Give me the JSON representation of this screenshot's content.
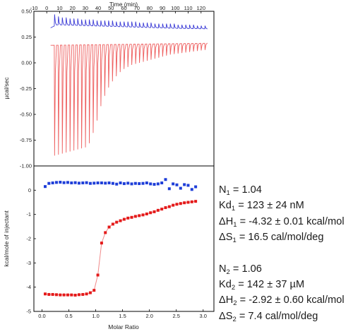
{
  "chart_data": [
    {
      "type": "line",
      "xlabel": "Time (min)",
      "ylabel": "µcal/sec",
      "xlim": [
        -10,
        130
      ],
      "ylim": [
        -1.0,
        0.5
      ],
      "xticks": [
        "-10",
        "0",
        "10",
        "20",
        "30",
        "40",
        "50",
        "60",
        "70",
        "80",
        "90",
        "100",
        "110",
        "120"
      ],
      "yticks": [
        "-1.00",
        "-0.75",
        "-0.50",
        "-0.25",
        "0.00",
        "0.25",
        "0.50"
      ],
      "injection_interval_min": 3,
      "series": [
        {
          "color": "#3b3bd6",
          "baseline": [
            [
              3,
              0.34
            ],
            [
              8,
              0.37
            ],
            [
              20,
              0.365
            ],
            [
              60,
              0.35
            ],
            [
              100,
              0.335
            ],
            [
              125,
              0.33
            ]
          ],
          "injection_times": [
            6,
            9,
            12,
            15,
            18,
            21,
            24,
            27,
            30,
            33,
            36,
            39,
            42,
            45,
            48,
            51,
            54,
            57,
            60,
            63,
            66,
            69,
            72,
            75,
            78,
            81,
            84,
            87,
            90,
            93,
            96,
            99,
            102,
            105,
            108,
            111,
            114,
            117,
            120,
            123
          ],
          "peak_values": [
            0.47,
            0.45,
            0.44,
            0.44,
            0.43,
            0.43,
            0.43,
            0.42,
            0.42,
            0.42,
            0.42,
            0.41,
            0.41,
            0.41,
            0.41,
            0.41,
            0.4,
            0.4,
            0.4,
            0.4,
            0.4,
            0.4,
            0.39,
            0.39,
            0.39,
            0.39,
            0.38,
            0.38,
            0.38,
            0.38,
            0.38,
            0.38,
            0.37,
            0.37,
            0.37,
            0.37,
            0.37,
            0.36,
            0.36,
            0.36
          ]
        },
        {
          "color": "#ee5e5e",
          "baseline": [
            [
              3,
              0.17
            ],
            [
              125,
              0.19
            ]
          ],
          "injection_times": [
            6,
            9,
            12,
            15,
            18,
            21,
            24,
            27,
            30,
            33,
            36,
            39,
            42,
            45,
            48,
            51,
            54,
            57,
            60,
            63,
            66,
            69,
            72,
            75,
            78,
            81,
            84,
            87,
            90,
            93,
            96,
            99,
            102,
            105,
            108,
            111,
            114,
            117,
            120,
            123
          ],
          "peak_values": [
            -0.9,
            -0.89,
            -0.88,
            -0.87,
            -0.86,
            -0.85,
            -0.84,
            -0.83,
            -0.82,
            -0.78,
            -0.68,
            -0.56,
            -0.42,
            -0.32,
            -0.24,
            -0.18,
            -0.13,
            -0.09,
            -0.06,
            -0.04,
            -0.02,
            -0.01,
            0.0,
            0.01,
            0.02,
            0.03,
            0.04,
            0.05,
            0.06,
            0.07,
            0.08,
            0.085,
            0.09,
            0.095,
            0.1,
            0.105,
            0.11,
            0.115,
            0.12,
            0.125
          ]
        }
      ]
    },
    {
      "type": "scatter",
      "xlabel": "Molar Ratio",
      "ylabel": "kcal/mole of injectant",
      "xlim": [
        -0.15,
        3.2
      ],
      "ylim": [
        -5,
        1
      ],
      "xticks": [
        "0.0",
        "0.5",
        "1.0",
        "1.5",
        "2.0",
        "2.5",
        "3.0"
      ],
      "yticks": [
        "-5",
        "-4",
        "-3",
        "-2",
        "-1",
        "0",
        "1"
      ],
      "series": [
        {
          "color": "#1e3ed8",
          "x": [
            0.06,
            0.13,
            0.2,
            0.27,
            0.34,
            0.41,
            0.48,
            0.55,
            0.62,
            0.69,
            0.76,
            0.83,
            0.9,
            0.97,
            1.04,
            1.11,
            1.18,
            1.25,
            1.32,
            1.39,
            1.46,
            1.53,
            1.6,
            1.67,
            1.74,
            1.81,
            1.88,
            1.95,
            2.02,
            2.09,
            2.16,
            2.23,
            2.3,
            2.37,
            2.44,
            2.51,
            2.58,
            2.65,
            2.72,
            2.79,
            2.86
          ],
          "y": [
            0.15,
            0.28,
            0.3,
            0.32,
            0.33,
            0.31,
            0.32,
            0.3,
            0.31,
            0.29,
            0.3,
            0.31,
            0.28,
            0.29,
            0.3,
            0.3,
            0.29,
            0.3,
            0.28,
            0.25,
            0.3,
            0.27,
            0.29,
            0.26,
            0.28,
            0.27,
            0.28,
            0.3,
            0.26,
            0.24,
            0.26,
            0.3,
            0.44,
            0.06,
            0.26,
            0.22,
            0.08,
            0.23,
            0.2,
            0.03,
            0.14
          ]
        },
        {
          "color": "#e41a1a",
          "fit_color": "#f08a8a",
          "x": [
            0.06,
            0.13,
            0.2,
            0.27,
            0.34,
            0.41,
            0.48,
            0.55,
            0.62,
            0.69,
            0.76,
            0.83,
            0.9,
            0.97,
            1.04,
            1.11,
            1.18,
            1.25,
            1.32,
            1.39,
            1.46,
            1.53,
            1.6,
            1.67,
            1.74,
            1.81,
            1.88,
            1.95,
            2.02,
            2.09,
            2.16,
            2.23,
            2.3,
            2.37,
            2.44,
            2.51,
            2.58,
            2.65,
            2.72,
            2.79,
            2.86
          ],
          "y": [
            -4.28,
            -4.3,
            -4.3,
            -4.31,
            -4.32,
            -4.32,
            -4.32,
            -4.32,
            -4.33,
            -4.31,
            -4.3,
            -4.28,
            -4.23,
            -4.13,
            -3.5,
            -2.18,
            -1.75,
            -1.52,
            -1.4,
            -1.32,
            -1.26,
            -1.2,
            -1.15,
            -1.12,
            -1.08,
            -1.05,
            -1.02,
            -0.98,
            -0.93,
            -0.89,
            -0.83,
            -0.78,
            -0.72,
            -0.68,
            -0.62,
            -0.58,
            -0.55,
            -0.52,
            -0.5,
            -0.48,
            -0.46
          ]
        }
      ]
    }
  ],
  "stats": {
    "site1": {
      "n_prefix": "N",
      "n_sub": "1",
      "n_value": " = 1.04",
      "kd_prefix": "Kd",
      "kd_sub": "1",
      "kd_value": " = 123 ± 24 nM",
      "dh_prefix": "ΔH",
      "dh_sub": "1",
      "dh_value": " = -4.32 ± 0.01 kcal/mol",
      "ds_prefix": "ΔS",
      "ds_sub": "1",
      "ds_value": " = 16.5 cal/mol/deg"
    },
    "site2": {
      "n_prefix": "N",
      "n_sub": "2",
      "n_value": " = 1.06",
      "kd_prefix": "Kd",
      "kd_sub": "2",
      "kd_value": " = 142 ± 37 µM",
      "dh_prefix": "ΔH",
      "dh_sub": "2",
      "dh_value": " = -2.92 ± 0.60 kcal/mol",
      "ds_prefix": "ΔS",
      "ds_sub": "2",
      "ds_value": " = 7.4 cal/mol/deg"
    }
  }
}
